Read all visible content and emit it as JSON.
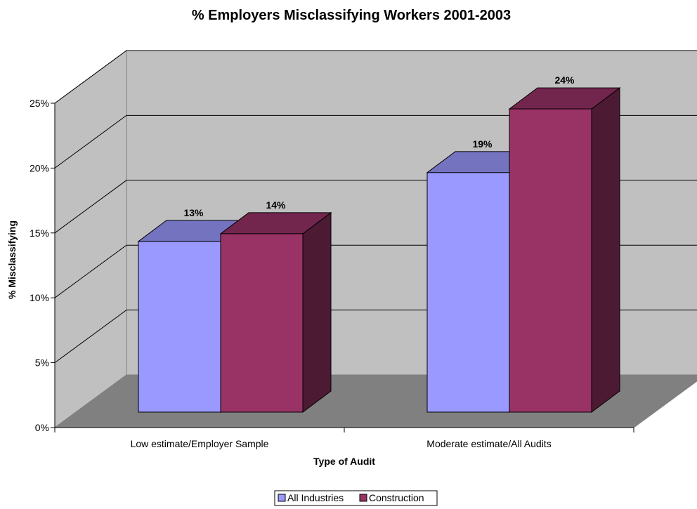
{
  "chart_data": {
    "type": "bar",
    "title": "% Employers Misclassifying Workers 2001-2003",
    "xlabel": "Type of Audit",
    "ylabel": "% Misclassifying",
    "categories": [
      "Low estimate/Employer Sample",
      "Moderate estimate/All Audits"
    ],
    "series": [
      {
        "name": "All Industries",
        "values": [
          13.4,
          18.8
        ],
        "labels": [
          "13%",
          "19%"
        ],
        "color": "#9999ff"
      },
      {
        "name": "Construction",
        "values": [
          14.0,
          23.8
        ],
        "labels": [
          "14%",
          "24%"
        ],
        "color": "#993366"
      }
    ],
    "yticks": [
      "0%",
      "5%",
      "10%",
      "15%",
      "20%",
      "25%"
    ],
    "ylim": [
      0,
      25
    ],
    "grid": true,
    "three_d": true,
    "legend": "bottom-center"
  }
}
